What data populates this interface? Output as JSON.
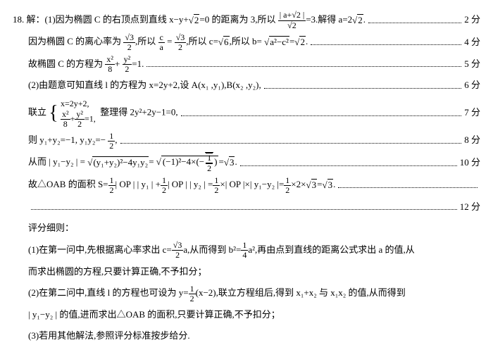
{
  "q": "18.",
  "lines": {
    "l1a": "解：(1)因为椭圆 C 的右顶点到直线 x−y+",
    "l1b": "=0 的距离为 3,所以",
    "l1c": "=3.解得 a=2",
    "l1d": ".",
    "l2a": "因为椭圆 C 的离心率为",
    "l2b": ",所以 ",
    "l2c": " = ",
    "l2d": ",所以 c=",
    "l2e": ",所以 b=",
    "l2f": "=",
    "l2g": ".",
    "l3a": "故椭圆 C 的方程为",
    "l3b": "+",
    "l3c": "=1.",
    "l4": "(2)由题意可知直线 l 的方程为 x=2y+2,设 A(x₁ ,y₁),B(x₂ ,y₂),",
    "l5a": "联立",
    "l5b": "整理得 2y²+2y−1=0,",
    "sys1": "x=2y+2,",
    "sys2a": "x²",
    "sys2b": "8",
    "sys2c": "y²",
    "sys2d": "2",
    "sys2e": "=1,",
    "l6a": "则 y₁+y₂=−1, y₁y₂=−",
    "l6b": ",",
    "l7a": "从而 | y₁−y₂ | =",
    "l7b": "=",
    "l7c": "=",
    "l7d": ".",
    "rad1": "(y₁+y₂)²−4y₁y₂",
    "rad2a": "(−1)²−4×(−",
    "rad2b": ")",
    "l8a": "故△OAB 的面积 S=",
    "l8b": "| OP | | y₁ | +",
    "l8c": "| OP | | y₂ | =",
    "l8d": "×| OP |×| y₁−y₂ |=",
    "l8e": "×2×",
    "l8f": "=",
    "l8g": ".",
    "grade": "评分细则：",
    "g1a": "(1)在第一问中,先根据离心率求出 c=",
    "g1b": "a,从而得到 b²=",
    "g1c": "a²,再由点到直线的距离公式求出 a 的值,从",
    "g1d": "而求出椭圆的方程,只要计算正确,不予扣分；",
    "g2a": "(2)在第二问中,直线 l 的方程也可设为 y=",
    "g2b": "(x−2),联立方程组后,得到 x₁+x₂ 与 x₁x₂ 的值,从而得到",
    "g2c": "| y₁−y₂ | 的值,进而求出△OAB 的面积,只要计算正确,不予扣分；",
    "g3": "(3)若用其他解法,参照评分标准按步给分."
  },
  "nums": {
    "sqrt2": "2",
    "sqrt3": "3",
    "sqrt6": "6",
    "f12n": "1",
    "f12d": "2",
    "f_s3_2n": "3",
    "f_s3_2d": "2",
    "fcan": "c",
    "fcad": "a",
    "fx8n": "x²",
    "fx8d": "8",
    "fy2n": "y²",
    "fy2d": "2",
    "a2c2": "a²−c²",
    "f14n": "1",
    "f14d": "4",
    "as2_top": "| a+√2 |",
    "as2_bot": "√2",
    "f_s3a_2n": "√3",
    "f_s3a_2d": "2"
  },
  "pts": {
    "p2": "2 分",
    "p4": "4 分",
    "p5": "5 分",
    "p6": "6 分",
    "p7": "7 分",
    "p8": "8 分",
    "p10": "10 分",
    "p12": "12 分"
  }
}
